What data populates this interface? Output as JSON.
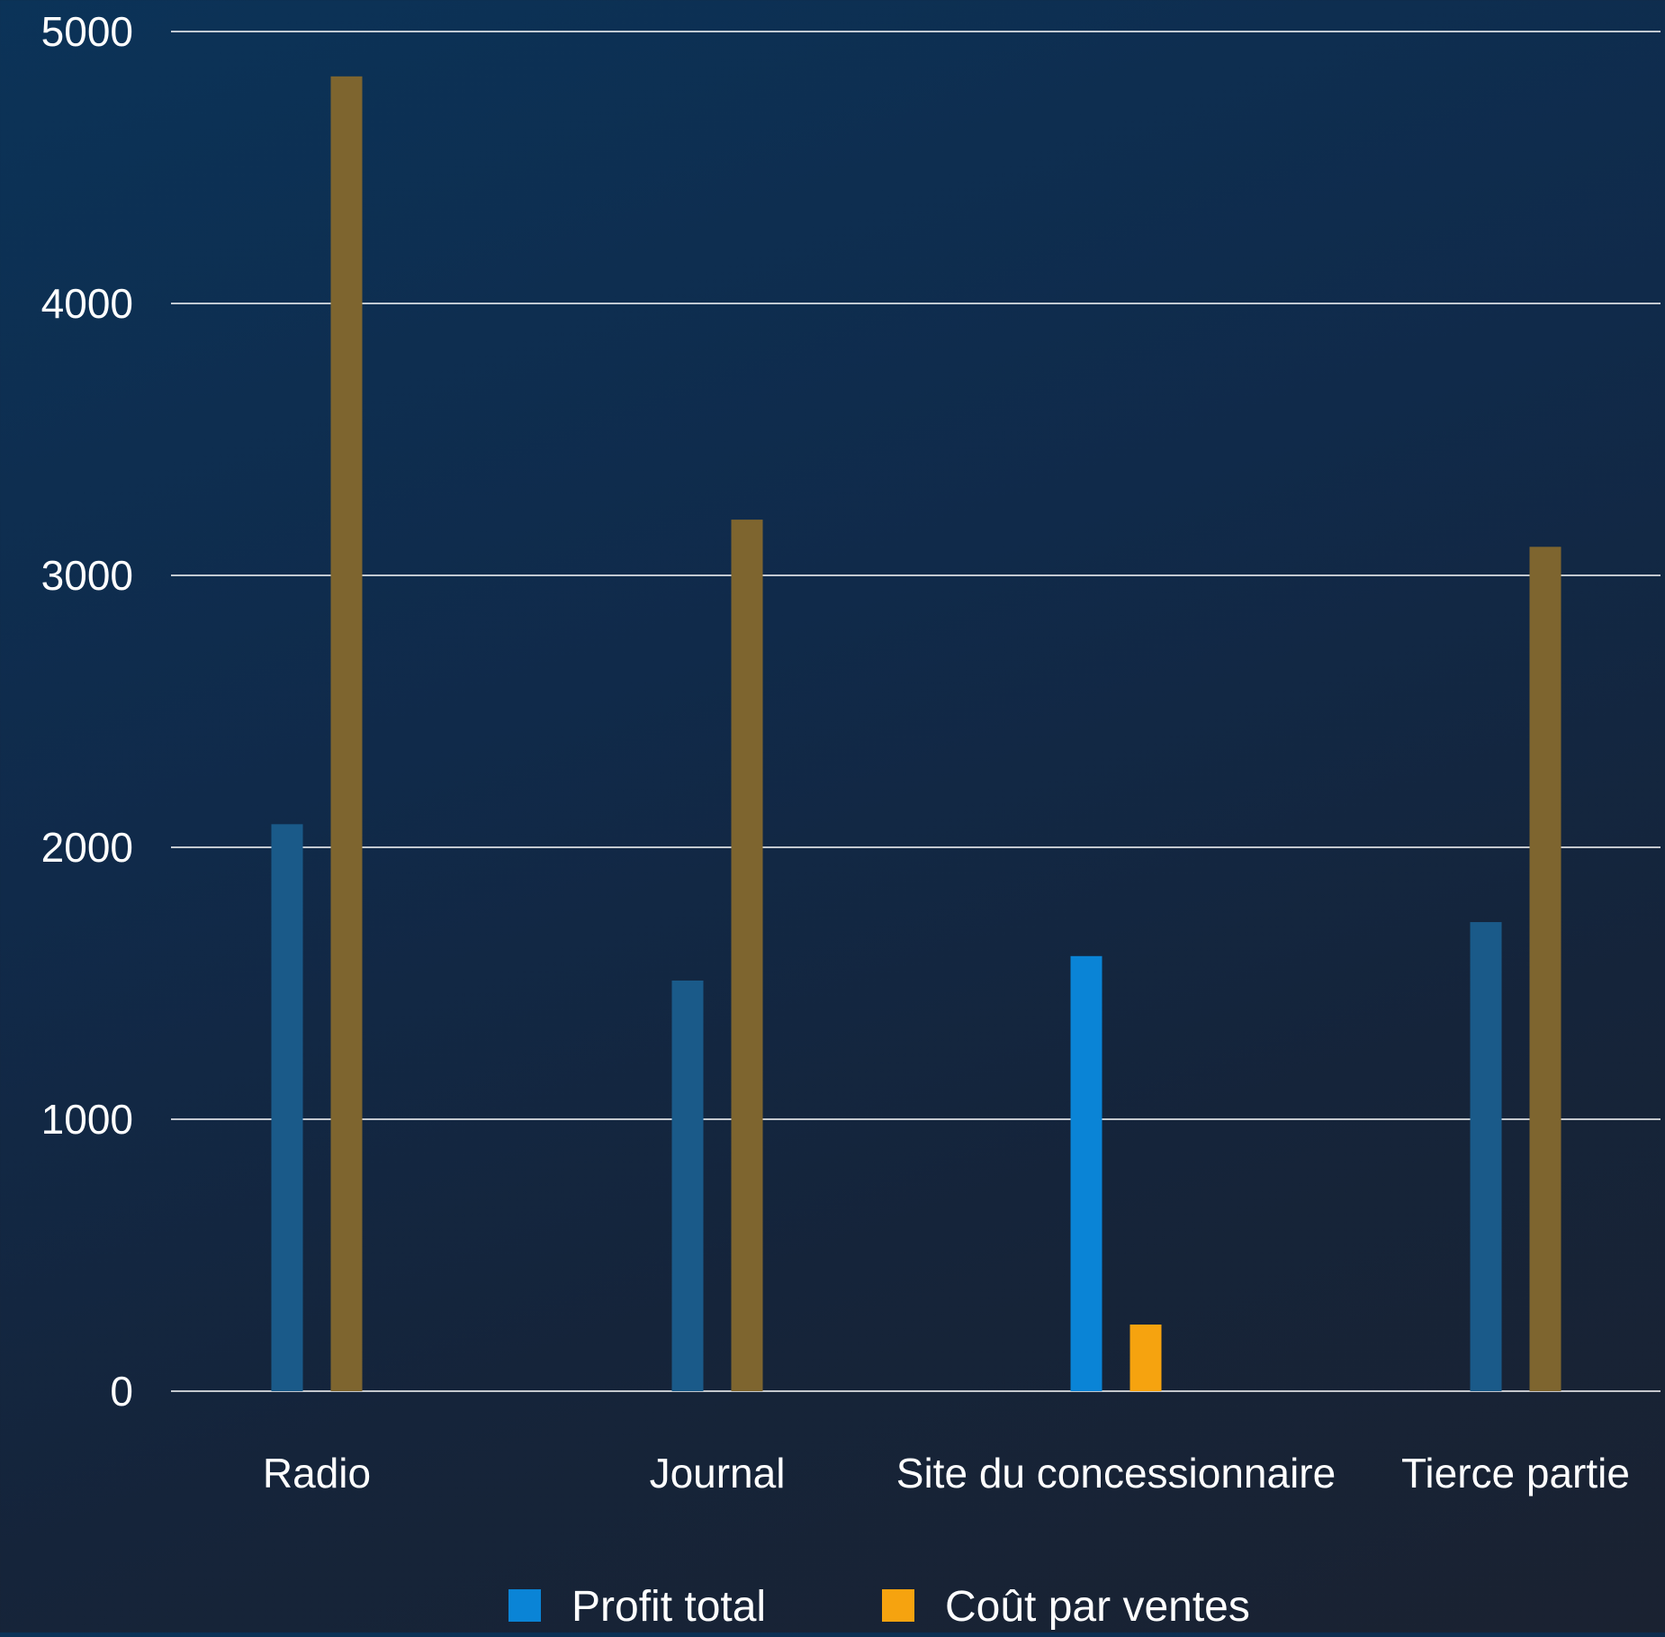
{
  "chart_data": {
    "type": "bar",
    "categories": [
      "Radio",
      "Journal",
      "Site du concessionnaire",
      "Tierce partie"
    ],
    "series": [
      {
        "name": "Profit total",
        "color": "#0a84d6",
        "values": [
          2085,
          1510,
          1600,
          1725
        ]
      },
      {
        "name": "Coût par ventes",
        "color": "#f6a30f",
        "values": [
          4835,
          3205,
          245,
          3105
        ]
      }
    ],
    "highlighted_category": "Site du concessionnaire",
    "dimmed_colors": [
      "#1a5a89",
      "#7e652f"
    ],
    "y_ticks": [
      "0",
      "1000",
      "2000",
      "3000",
      "4000",
      "5000"
    ],
    "ylim": [
      0,
      5000
    ],
    "grid": true,
    "legend_position": "bottom-center"
  }
}
